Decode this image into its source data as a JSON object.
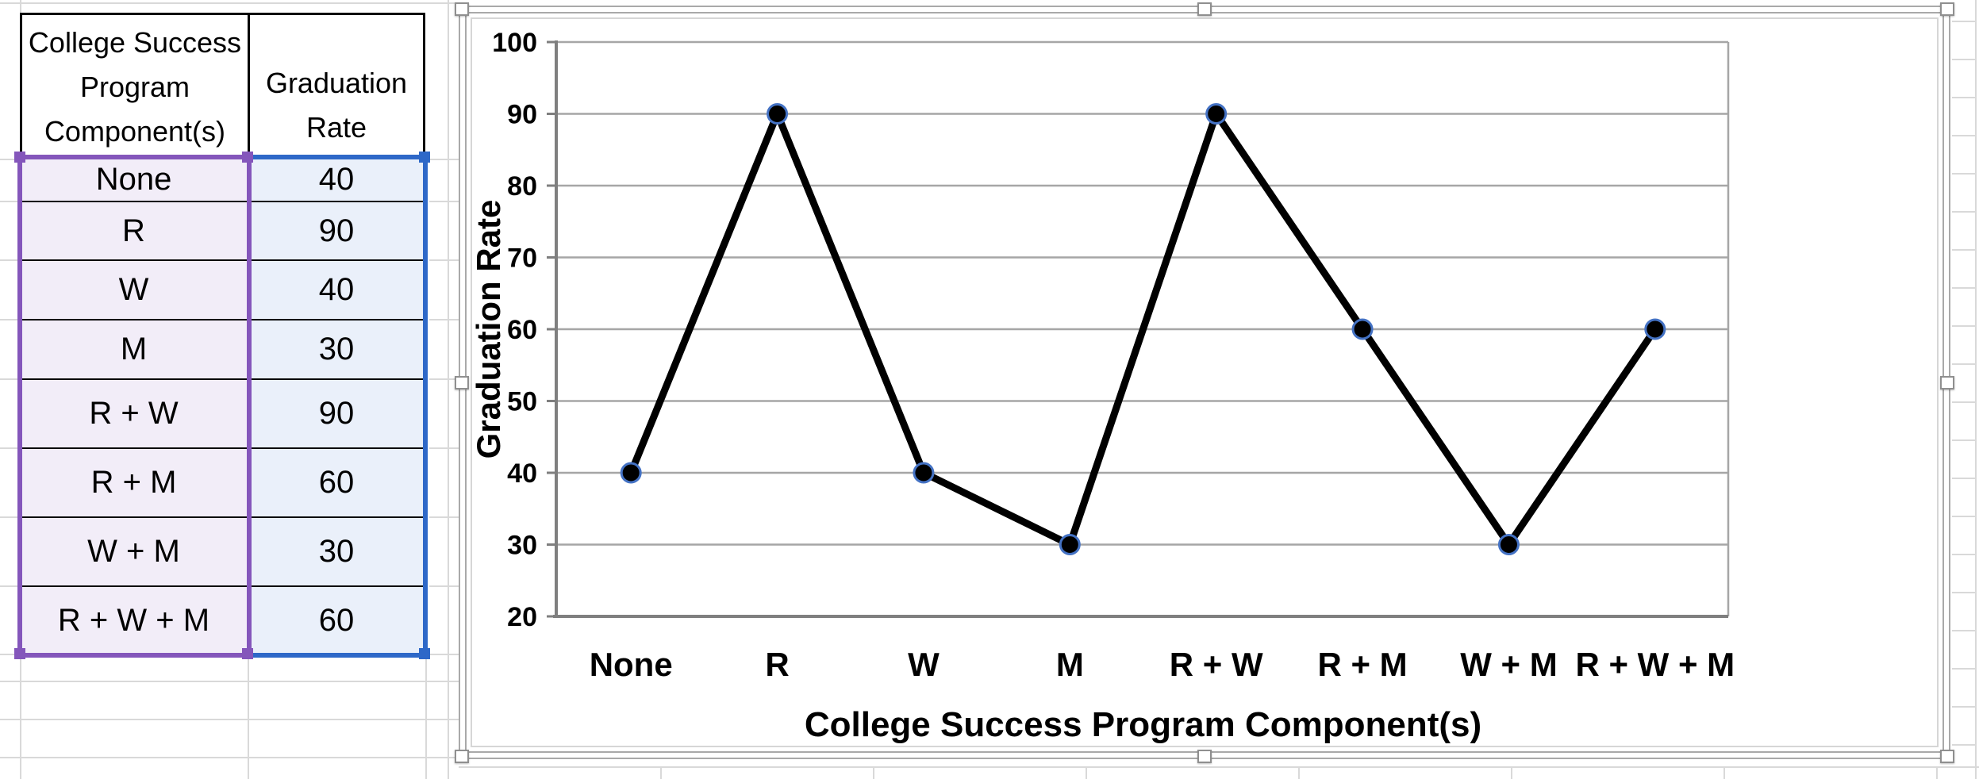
{
  "table": {
    "header_col1": "College Success\nProgram\nComponent(s)",
    "header_col2": "Graduation\nRate",
    "rows": [
      {
        "component": "None",
        "rate": "40"
      },
      {
        "component": "R",
        "rate": "90"
      },
      {
        "component": "W",
        "rate": "40"
      },
      {
        "component": "M",
        "rate": "30"
      },
      {
        "component": "R + W",
        "rate": "90"
      },
      {
        "component": "R + M",
        "rate": "60"
      },
      {
        "component": "W + M",
        "rate": "30"
      },
      {
        "component": "R + W + M",
        "rate": "60"
      }
    ]
  },
  "chart_data": {
    "type": "line",
    "categories": [
      "None",
      "R",
      "W",
      "M",
      "R + W",
      "R + M",
      "W + M",
      "R + W + M"
    ],
    "values": [
      40,
      90,
      40,
      30,
      90,
      60,
      30,
      60
    ],
    "series_name": "Graduation Rate",
    "xlabel": "College Success Program Component(s)",
    "ylabel": "Graduation Rate",
    "ylim": [
      20,
      100
    ],
    "yticks": [
      20,
      30,
      40,
      50,
      60,
      70,
      80,
      90,
      100
    ],
    "grid": "horizontal",
    "legend": "none",
    "line_color": "#000000",
    "marker_fill": "#000000",
    "marker_outline": "#4472C4"
  },
  "colors": {
    "selection_purple": "#8456BB",
    "selection_blue": "#2E68C8",
    "col1_fill": "#F2EDF8",
    "col2_fill": "#EAF0FA",
    "sheet_gridline": "#D9D9D9",
    "chart_gridline": "#A6A6A6",
    "axis_gray": "#7F7F7F",
    "frame_gray": "#A9A9A9",
    "chart_border_gray": "#D6D6D6"
  }
}
